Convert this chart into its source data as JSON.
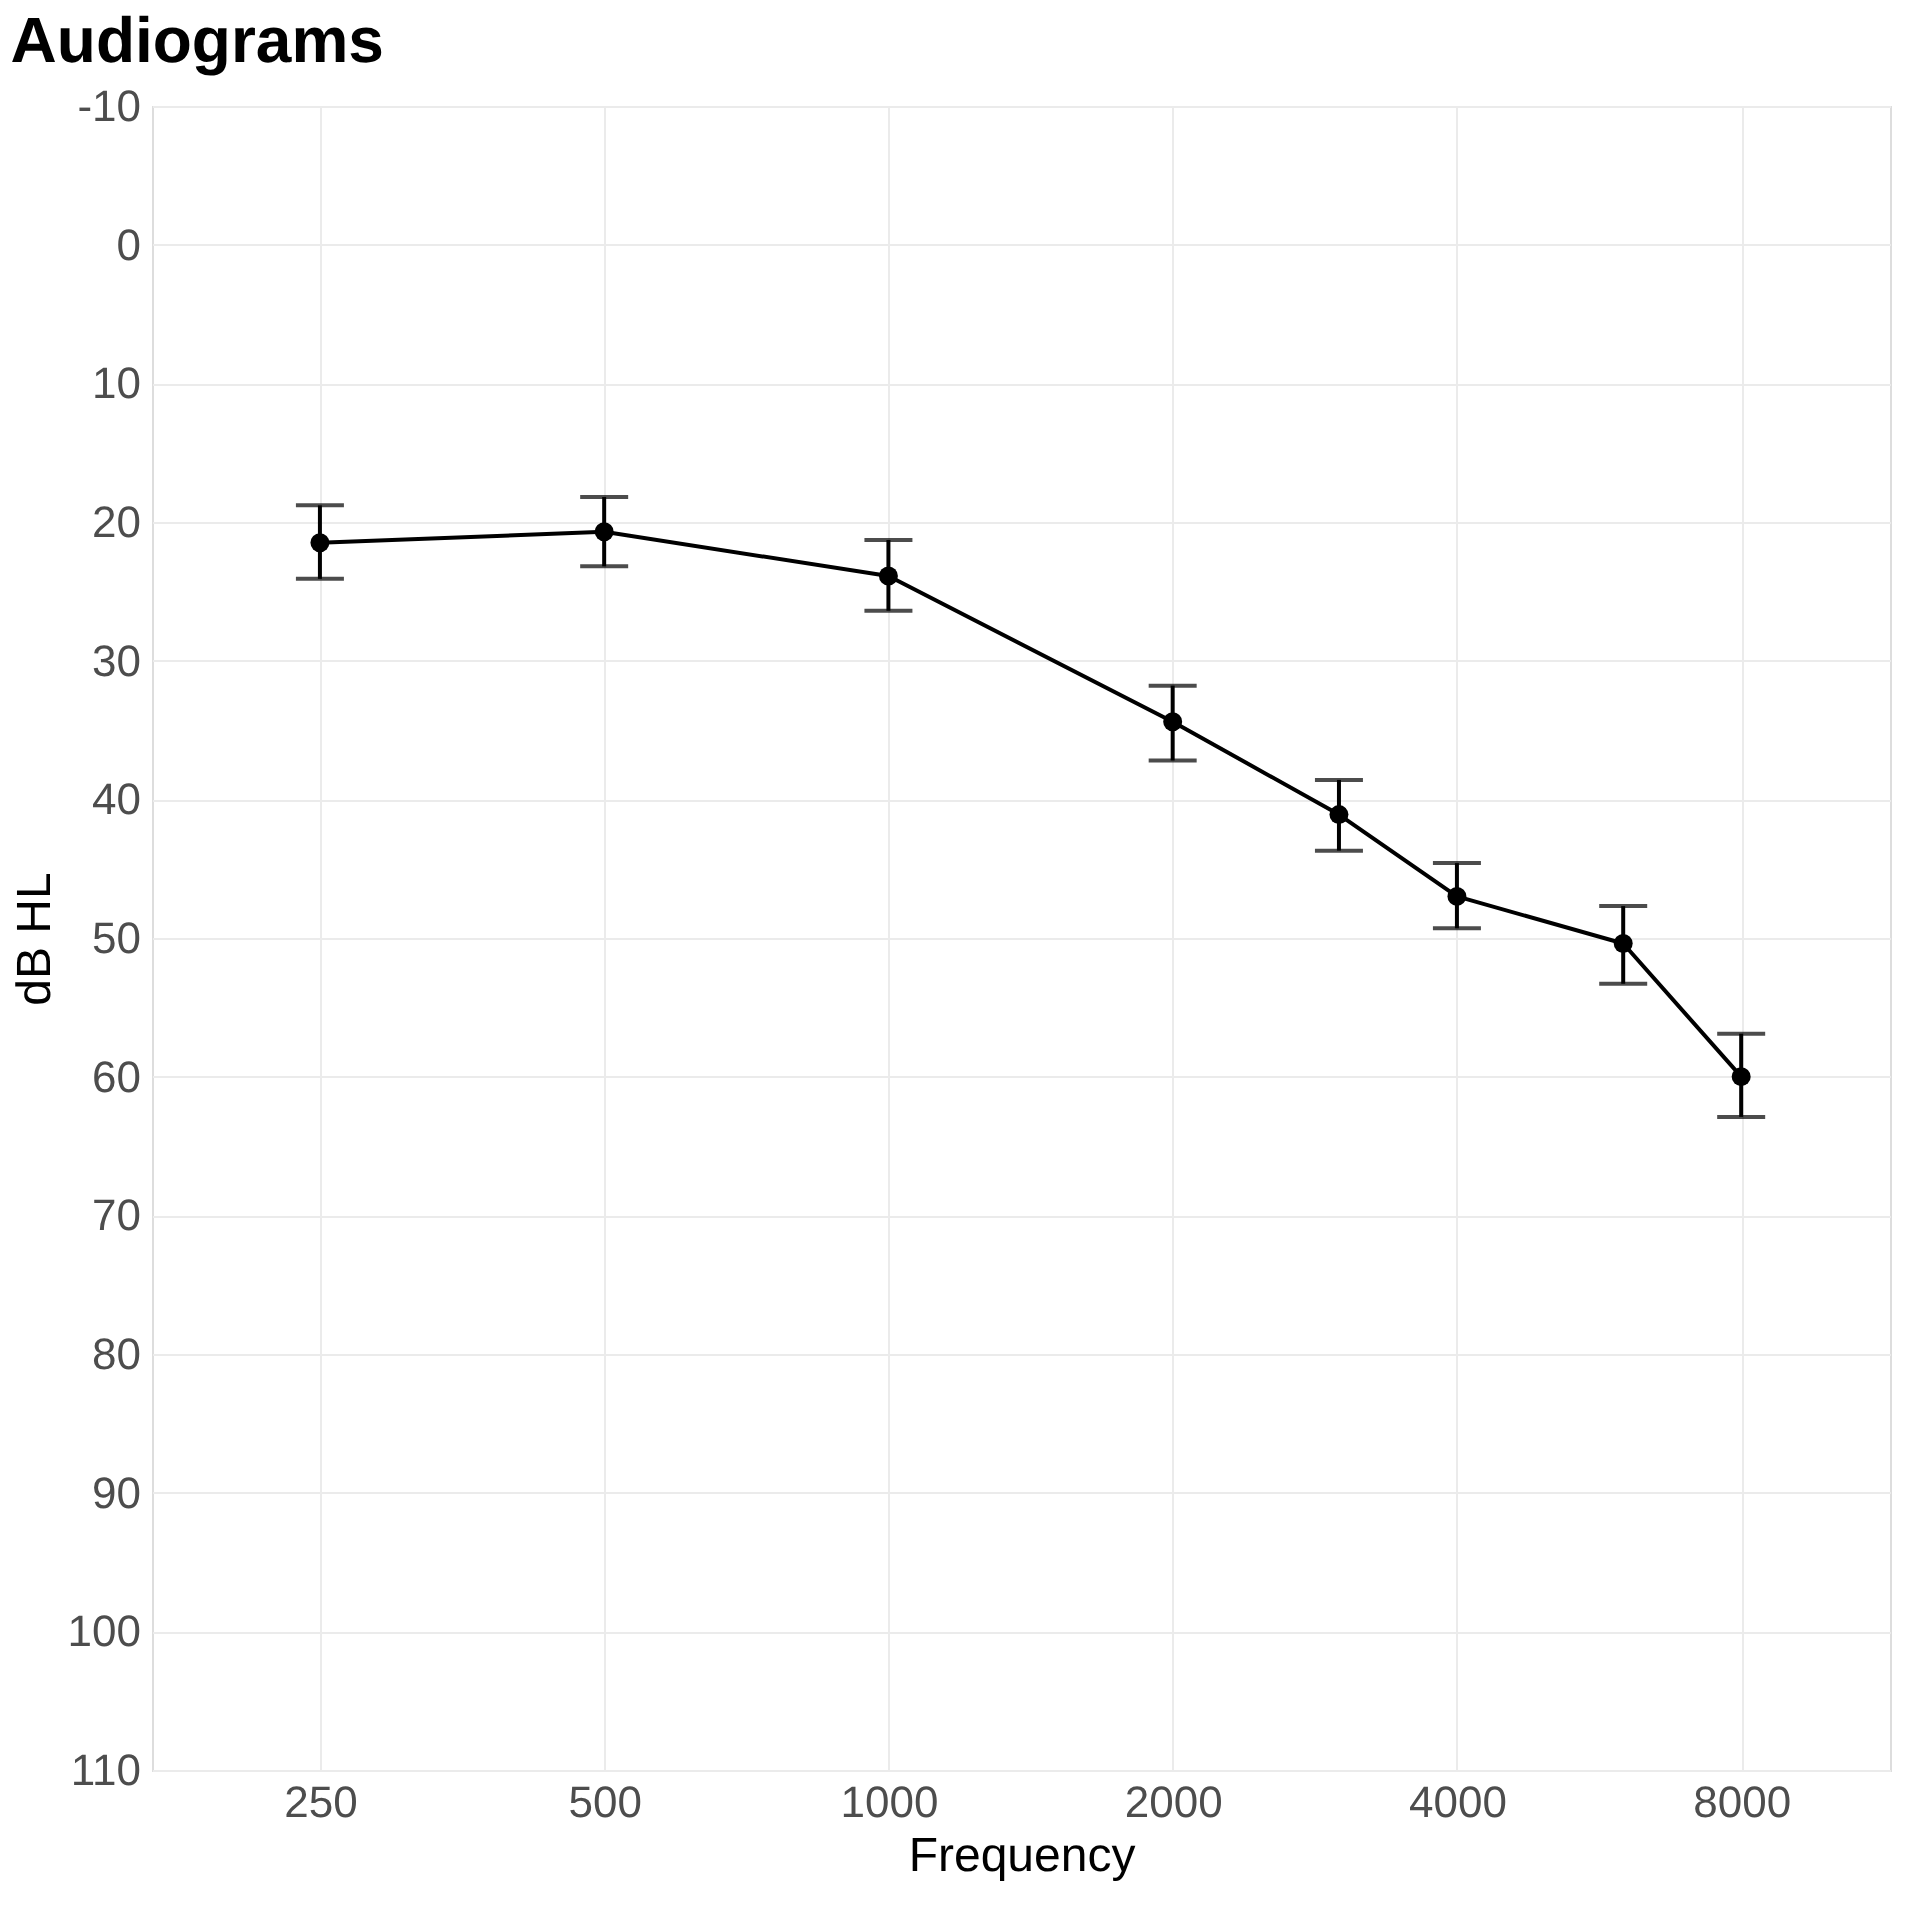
{
  "chart_data": {
    "type": "line",
    "title": "Audiograms",
    "xlabel": "Frequency",
    "ylabel": "dB HL",
    "log": "x",
    "xlim": [
      166,
      11500
    ],
    "xticks": [
      250,
      500,
      1000,
      2000,
      4000,
      8000
    ],
    "ylim": [
      110,
      -10
    ],
    "yticks": [
      -10,
      0,
      10,
      20,
      30,
      40,
      50,
      60,
      70,
      80,
      90,
      100,
      110
    ],
    "grid": true,
    "marker": "circle",
    "line_style": "solid",
    "series": [
      {
        "color": "#000000",
        "x": [
          250,
          500,
          1000,
          2000,
          3000,
          4000,
          6000,
          8000
        ],
        "values": [
          21.5,
          20.7,
          23.9,
          34.4,
          41.1,
          47.0,
          50.4,
          60.0
        ],
        "errors": [
          [
            18.8,
            24.1
          ],
          [
            18.2,
            23.2
          ],
          [
            21.3,
            26.4
          ],
          [
            31.8,
            37.2
          ],
          [
            38.6,
            43.7
          ],
          [
            44.6,
            49.3
          ],
          [
            47.7,
            53.3
          ],
          [
            56.9,
            62.9
          ]
        ]
      }
    ]
  }
}
